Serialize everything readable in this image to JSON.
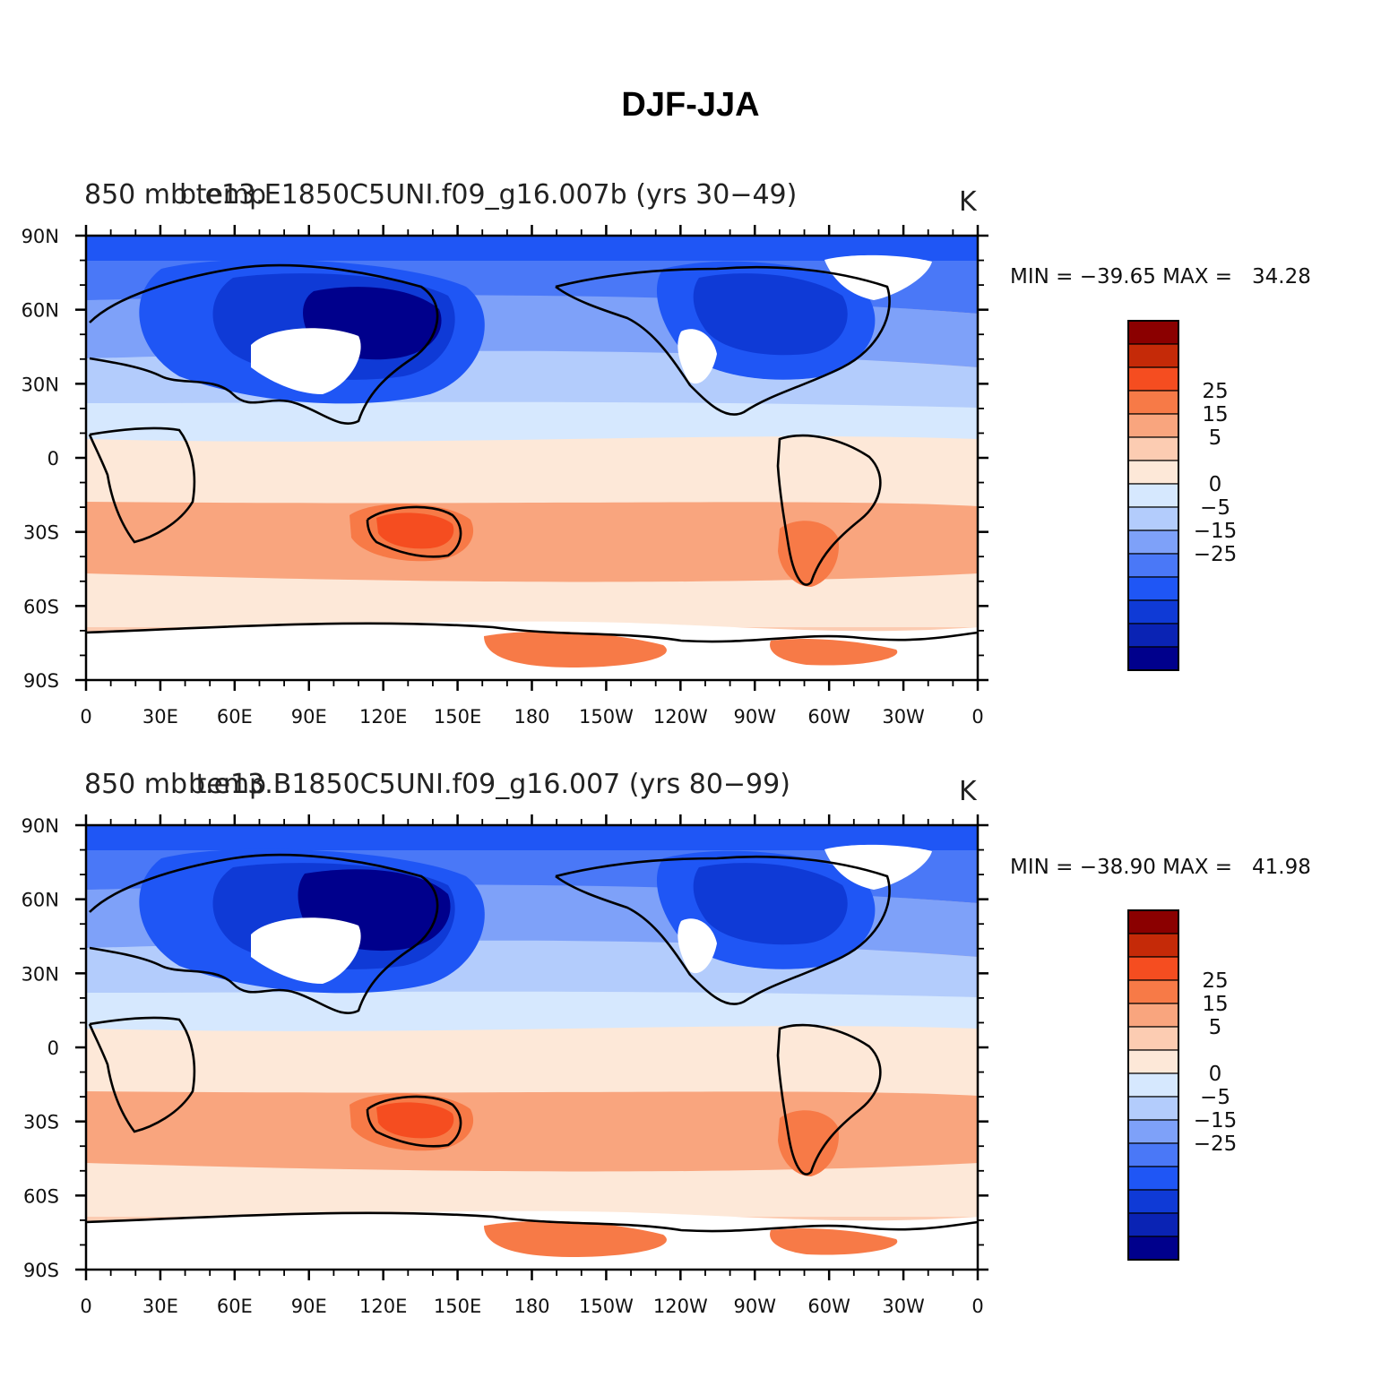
{
  "title": "DJF-JJA",
  "colorbar": {
    "colors": [
      "#00008c",
      "#0a23b4",
      "#0f3ad6",
      "#1f56f5",
      "#4a78f7",
      "#7ea1f9",
      "#b3ccfc",
      "#d6e8fe",
      "#fde8d8",
      "#fcccb2",
      "#f9a57e",
      "#f77a47",
      "#f54d20",
      "#c52a08",
      "#8b0000"
    ],
    "labels": [
      {
        "text": "25",
        "boundary": 12
      },
      {
        "text": "15",
        "boundary": 11
      },
      {
        "text": "5",
        "boundary": 10
      },
      {
        "text": "0",
        "boundary": 8
      },
      {
        "text": "−5",
        "boundary": 7
      },
      {
        "text": "−15",
        "boundary": 6
      },
      {
        "text": "−25",
        "boundary": 5
      }
    ]
  },
  "lon_ticks": [
    "0",
    "30E",
    "60E",
    "90E",
    "120E",
    "150E",
    "180",
    "150W",
    "120W",
    "90W",
    "60W",
    "30W",
    "0"
  ],
  "lat_ticks": [
    "90N",
    "60N",
    "30N",
    "0",
    "30S",
    "60S",
    "90S"
  ],
  "panels": [
    {
      "left_title": "850 mb temp",
      "case_title": "b.e13.E1850C5UNI.f09_g16.007b (yrs 30−49)",
      "units": "K",
      "minmax": "MIN = −39.65 MAX =   34.28",
      "min": -39.65,
      "max": 34.28
    },
    {
      "left_title": "850 mb temp",
      "case_title": "b.e13.B1850C5UNI.f09_g16.007 (yrs 80−99)",
      "units": "K",
      "minmax": "MIN = −38.90 MAX =   41.98",
      "min": -38.9,
      "max": 41.98
    }
  ]
}
